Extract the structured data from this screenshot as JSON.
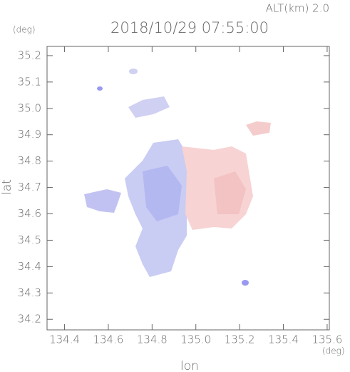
{
  "chart_data": {
    "type": "map",
    "title": "2018/10/29 07:55:00",
    "subtitle": "ALT(km) 2.0",
    "x_label": "lon",
    "y_label": "lat",
    "x_unit": "(deg)",
    "y_unit": "(deg)",
    "xlim": [
      134.32,
      135.61
    ],
    "ylim": [
      34.16,
      35.235
    ],
    "xticks": [
      134.4,
      134.6,
      134.8,
      {
        "value": 135,
        "label": "135.0"
      },
      135.2,
      135.4,
      135.6
    ],
    "yticks": [
      34.2,
      34.3,
      34.4,
      34.5,
      34.6,
      34.7,
      34.8,
      34.9,
      {
        "value": 35,
        "label": "35.0"
      },
      35.1,
      35.2
    ]
  }
}
